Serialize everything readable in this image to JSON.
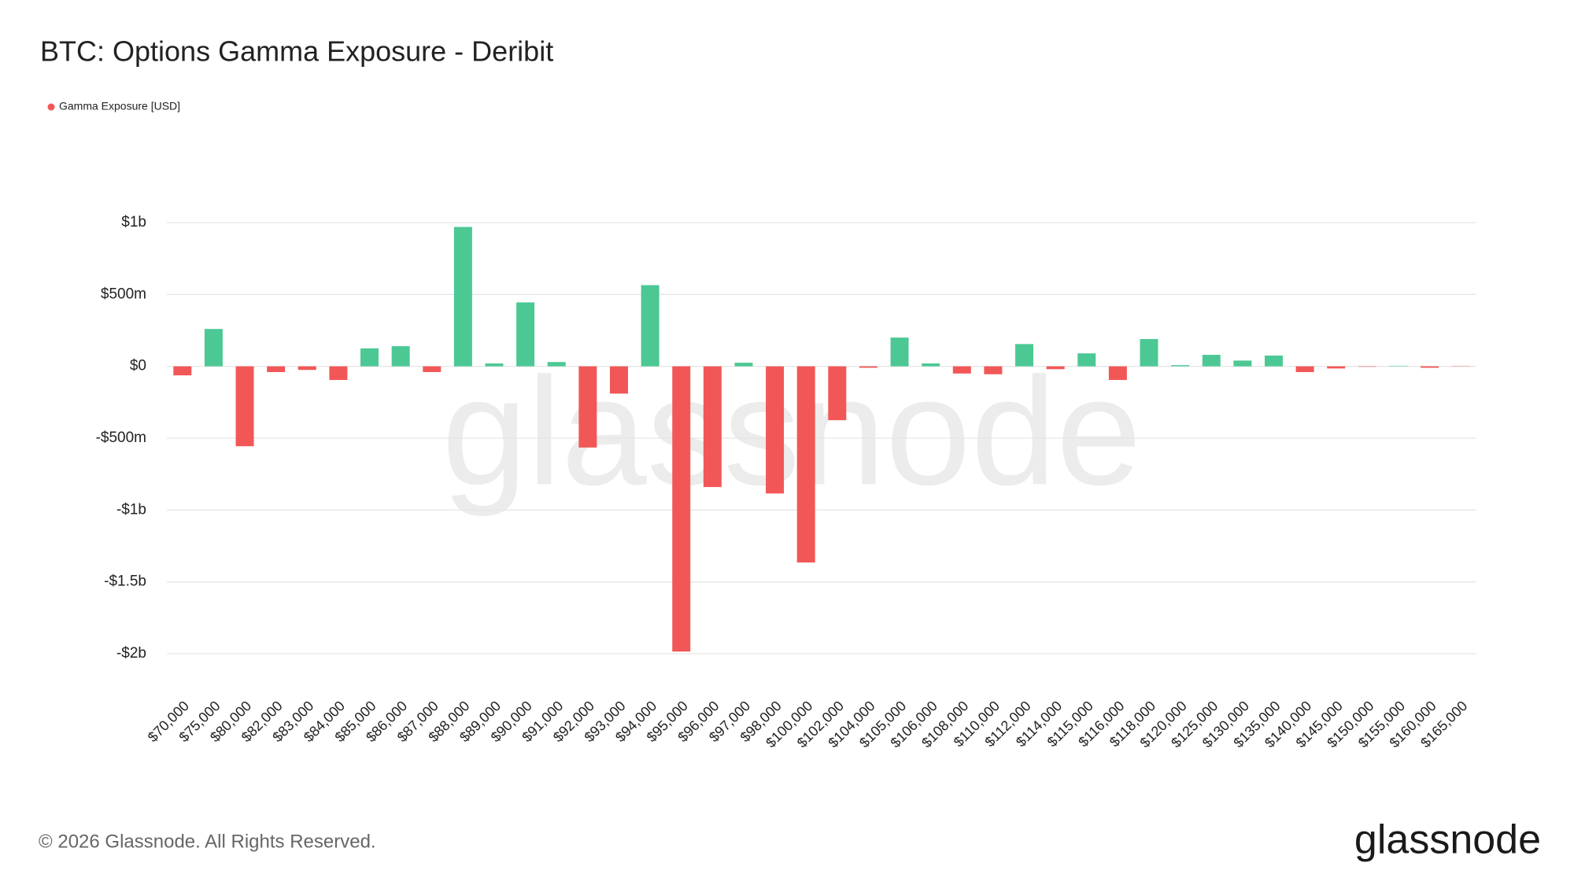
{
  "chart_data": {
    "type": "bar",
    "title": "BTC: Options Gamma Exposure - Deribit",
    "series": [
      {
        "name": "Gamma Exposure [USD]",
        "color": "#f25757",
        "positive_color": "#4cc894",
        "values": [
          -63000000,
          260000000,
          -556000000,
          -40000000,
          -25000000,
          -95000000,
          125000000,
          140000000,
          -40000000,
          970000000,
          20000000,
          445000000,
          30000000,
          -565000000,
          -190000000,
          565000000,
          -1985000000,
          -840000000,
          25000000,
          -885000000,
          -1365000000,
          -375000000,
          -10000000,
          200000000,
          20000000,
          -50000000,
          -55000000,
          155000000,
          -20000000,
          90000000,
          -95000000,
          190000000,
          8000000,
          80000000,
          40000000,
          75000000,
          -40000000,
          -15000000,
          -3000000,
          3000000,
          -10000000,
          -2000000
        ]
      }
    ],
    "categories": [
      "$70,000",
      "$75,000",
      "$80,000",
      "$82,000",
      "$83,000",
      "$84,000",
      "$85,000",
      "$86,000",
      "$87,000",
      "$88,000",
      "$89,000",
      "$90,000",
      "$91,000",
      "$92,000",
      "$93,000",
      "$94,000",
      "$95,000",
      "$96,000",
      "$97,000",
      "$98,000",
      "$100,000",
      "$102,000",
      "$104,000",
      "$105,000",
      "$106,000",
      "$108,000",
      "$110,000",
      "$112,000",
      "$114,000",
      "$115,000",
      "$116,000",
      "$118,000",
      "$120,000",
      "$125,000",
      "$130,000",
      "$135,000",
      "$140,000",
      "$145,000",
      "$150,000",
      "$155,000",
      "$160,000",
      "$165,000"
    ],
    "ylim": [
      -2000000000,
      1000000000
    ],
    "yticks": [
      {
        "value": 1000000000,
        "label": "$1b"
      },
      {
        "value": 500000000,
        "label": "$500m"
      },
      {
        "value": 0,
        "label": "$0"
      },
      {
        "value": -500000000,
        "label": "-$500m"
      },
      {
        "value": -1000000000,
        "label": "-$1b"
      },
      {
        "value": -1500000000,
        "label": "-$1.5b"
      },
      {
        "value": -2000000000,
        "label": "-$2b"
      }
    ],
    "grid": true
  },
  "watermark": "glassnode",
  "footer": "© 2026 Glassnode. All Rights Reserved.",
  "logo": "glassnode"
}
